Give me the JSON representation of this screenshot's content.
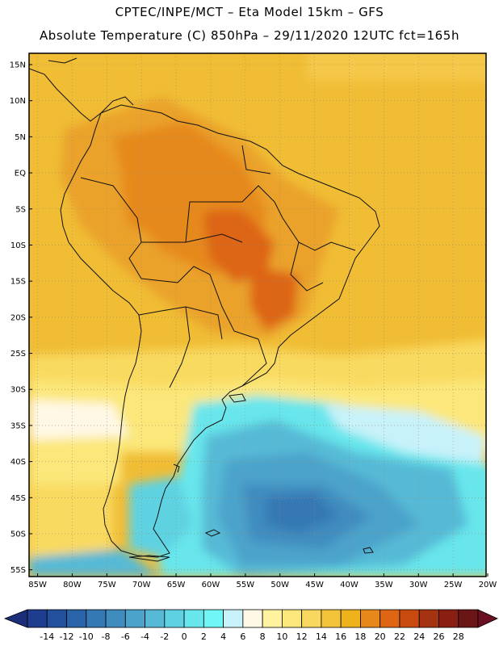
{
  "header": {
    "line1": "CPTEC/INPE/MCT –  Eta Model 15km – GFS",
    "line2": "Absolute Temperature (C) 850hPa – 29/11/2020 12UTC fct=165h"
  },
  "map": {
    "lat_ticks": [
      "15N",
      "10N",
      "5N",
      "EQ",
      "5S",
      "10S",
      "15S",
      "20S",
      "25S",
      "30S",
      "35S",
      "40S",
      "45S",
      "50S",
      "55S"
    ],
    "lon_ticks": [
      "85W",
      "80W",
      "75W",
      "70W",
      "65W",
      "60W",
      "55W",
      "50W",
      "45W",
      "40W",
      "35W",
      "30W",
      "25W",
      "20W"
    ]
  },
  "colorbar": {
    "labels": [
      "-14",
      "-12",
      "-10",
      "-8",
      "-6",
      "-4",
      "-2",
      "0",
      "2",
      "4",
      "6",
      "8",
      "10",
      "12",
      "14",
      "16",
      "18",
      "20",
      "22",
      "24",
      "26",
      "28"
    ],
    "colors": [
      "#1f3d8f",
      "#23509c",
      "#2a64a8",
      "#3478b4",
      "#3f8cbf",
      "#4ba3cb",
      "#56bad6",
      "#5fd2e2",
      "#67e6ec",
      "#70f7f5",
      "#c8f2fa",
      "#fff8e6",
      "#fff3a0",
      "#fbe77a",
      "#f8d85e",
      "#f3c43a",
      "#efb21a",
      "#e6891a",
      "#dd6514",
      "#c84a0e",
      "#a53210",
      "#8b1e12",
      "#6a1616"
    ],
    "left_color": "#1c2e7a",
    "right_color": "#6a1020"
  }
}
